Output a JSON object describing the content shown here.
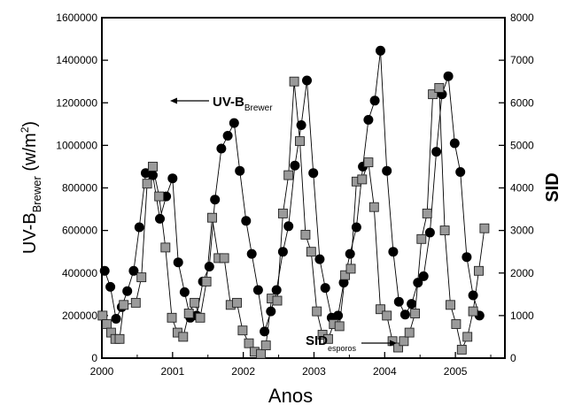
{
  "chart_data": {
    "type": "scatter",
    "title": "",
    "xlabel": "Anos",
    "ylabel_left": {
      "main": "UV-B",
      "sub": "Brewer",
      "unit_pre": " (w/m",
      "unit_sup": "2",
      "unit_post": ")"
    },
    "ylabel_right": "SID",
    "xlim": [
      2000,
      2005.7
    ],
    "ylim_left": [
      0,
      1600000
    ],
    "ylim_right": [
      0,
      8000
    ],
    "x_ticks": [
      "2000",
      "2001",
      "2002",
      "2003",
      "2004",
      "2005"
    ],
    "y_left_ticks": [
      "0",
      "200000",
      "400000",
      "600000",
      "800000",
      "1000000",
      "1200000",
      "1400000",
      "1600000"
    ],
    "y_right_ticks": [
      "0",
      "1000",
      "2000",
      "3000",
      "4000",
      "5000",
      "6000",
      "7000",
      "8000"
    ],
    "grid": false,
    "annotations": [
      {
        "main": "UV-B",
        "sub": "Brewer",
        "arrow": "left"
      },
      {
        "main": "SID",
        "sub": "esporos",
        "arrow": "right"
      }
    ],
    "series": [
      {
        "name": "UV-B Brewer",
        "axis": "left",
        "marker": "circle",
        "color": "#000000",
        "x": [
          2000.04,
          2000.12,
          2000.2,
          2000.28,
          2000.36,
          2000.45,
          2000.53,
          2000.62,
          2000.72,
          2000.82,
          2000.91,
          2001.0,
          2001.08,
          2001.17,
          2001.25,
          2001.34,
          2001.43,
          2001.52,
          2001.6,
          2001.69,
          2001.78,
          2001.87,
          2001.95,
          2002.04,
          2002.12,
          2002.21,
          2002.3,
          2002.39,
          2002.47,
          2002.56,
          2002.64,
          2002.73,
          2002.82,
          2002.9,
          2002.99,
          2003.08,
          2003.16,
          2003.25,
          2003.34,
          2003.42,
          2003.51,
          2003.6,
          2003.69,
          2003.77,
          2003.86,
          2003.94,
          2004.03,
          2004.12,
          2004.2,
          2004.29,
          2004.38,
          2004.47,
          2004.55,
          2004.64,
          2004.73,
          2004.81,
          2004.9,
          2004.99,
          2005.07,
          2005.16,
          2005.25,
          2005.34
        ],
        "y": [
          410000,
          335000,
          185000,
          240000,
          315000,
          410000,
          615000,
          870000,
          860000,
          655000,
          760000,
          845000,
          450000,
          310000,
          190000,
          200000,
          360000,
          430000,
          745000,
          985000,
          1045000,
          1105000,
          880000,
          645000,
          490000,
          320000,
          125000,
          220000,
          320000,
          500000,
          620000,
          905000,
          1095000,
          1305000,
          870000,
          465000,
          330000,
          190000,
          200000,
          355000,
          490000,
          615000,
          900000,
          1120000,
          1210000,
          1445000,
          880000,
          500000,
          265000,
          205000,
          255000,
          355000,
          385000,
          590000,
          970000,
          1240000,
          1325000,
          1010000,
          875000,
          475000,
          295000,
          200000
        ]
      },
      {
        "name": "SID esporos",
        "axis": "right",
        "marker": "square",
        "color": "#9a9a9a",
        "x": [
          2000.01,
          2000.07,
          2000.13,
          2000.19,
          2000.25,
          2000.31,
          2000.48,
          2000.56,
          2000.64,
          2000.72,
          2000.81,
          2000.9,
          2000.99,
          2001.07,
          2001.15,
          2001.23,
          2001.31,
          2001.39,
          2001.48,
          2001.56,
          2001.65,
          2001.73,
          2001.82,
          2001.91,
          2001.99,
          2002.08,
          2002.16,
          2002.25,
          2002.32,
          2002.4,
          2002.48,
          2002.56,
          2002.64,
          2002.72,
          2002.8,
          2002.88,
          2002.96,
          2003.04,
          2003.12,
          2003.2,
          2003.28,
          2003.36,
          2003.44,
          2003.52,
          2003.6,
          2003.68,
          2003.77,
          2003.85,
          2003.94,
          2004.03,
          2004.11,
          2004.19,
          2004.27,
          2004.35,
          2004.43,
          2004.52,
          2004.6,
          2004.68,
          2004.77,
          2004.85,
          2004.93,
          2005.01,
          2005.09,
          2005.17,
          2005.25,
          2005.33,
          2005.41
        ],
        "y": [
          1000,
          800,
          600,
          450,
          450,
          1250,
          1300,
          1900,
          4100,
          4500,
          3800,
          2600,
          950,
          600,
          500,
          1050,
          1300,
          950,
          1800,
          3300,
          2350,
          2350,
          1250,
          1300,
          650,
          350,
          150,
          100,
          300,
          1400,
          1350,
          3400,
          4300,
          6500,
          5100,
          2900,
          2500,
          1100,
          550,
          450,
          800,
          750,
          1950,
          2100,
          4150,
          4200,
          4600,
          3550,
          1150,
          1000,
          400,
          250,
          400,
          600,
          1050,
          2800,
          3400,
          6200,
          6350,
          3000,
          1250,
          800,
          200,
          500,
          1100,
          2050,
          3050
        ]
      }
    ]
  }
}
